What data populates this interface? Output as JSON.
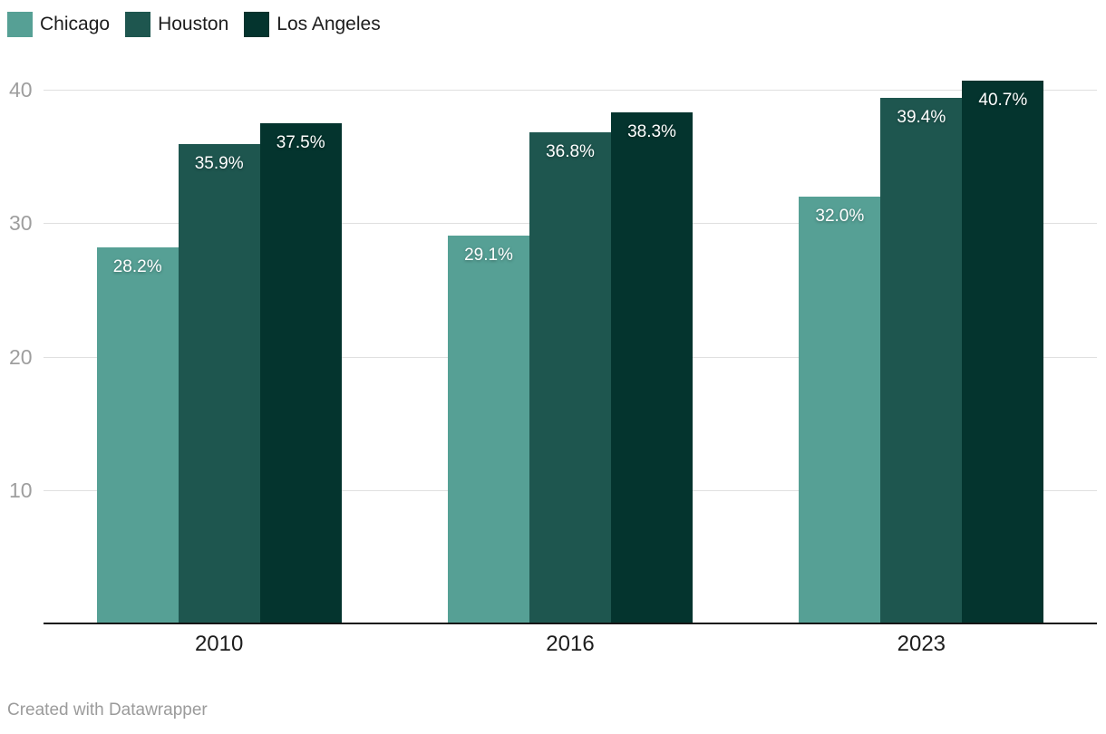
{
  "chart_data": {
    "type": "bar",
    "title": "",
    "categories": [
      "2010",
      "2016",
      "2023"
    ],
    "series": [
      {
        "name": "Chicago",
        "color": "#56a095",
        "values": [
          28.2,
          29.1,
          32.0
        ],
        "labels": [
          "28.2%",
          "29.1%",
          "32.0%"
        ]
      },
      {
        "name": "Houston",
        "color": "#1e564f",
        "values": [
          35.9,
          36.8,
          39.4
        ],
        "labels": [
          "35.9%",
          "36.8%",
          "39.4%"
        ]
      },
      {
        "name": "Los Angeles",
        "color": "#04342e",
        "values": [
          37.5,
          38.3,
          40.7
        ],
        "labels": [
          "37.5%",
          "38.3%",
          "40.7%"
        ]
      }
    ],
    "value_suffix": "%",
    "y_axis": {
      "ticks": [
        10,
        20,
        30,
        40
      ],
      "ylim": [
        0,
        41
      ],
      "grid": true
    },
    "legend_position": "top-left",
    "colors": {
      "bar_label_text": "#ffffff",
      "grid_line": "#e0e0e0",
      "axis_line": "#161616",
      "y_tick_text": "#9e9e9e",
      "x_tick_text": "#1d1d1d",
      "legend_text": "#1d1d1d",
      "background": "#ffffff"
    }
  },
  "footer": {
    "text": "Created with Datawrapper"
  }
}
